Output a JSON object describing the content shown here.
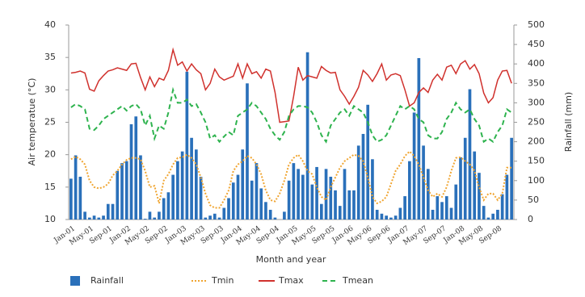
{
  "chart_data": {
    "type": "bar",
    "x_label": "Month and year",
    "y_label": "Air temperatue (°C)",
    "y2_label": "Rainfall (mm)",
    "categories": [
      "Jan-01",
      null,
      null,
      null,
      "May-01",
      null,
      null,
      null,
      "Sep-01",
      null,
      null,
      null,
      "Jan-02",
      null,
      null,
      null,
      "May-02",
      null,
      null,
      null,
      "Sep-02",
      null,
      null,
      null,
      "Jan-03",
      null,
      null,
      null,
      "May-03",
      null,
      null,
      null,
      "Sep-03",
      null,
      null,
      null,
      "Jan-04",
      null,
      null,
      null,
      "May-04",
      null,
      null,
      null,
      "Sep-04",
      null,
      null,
      null,
      "Jan-05",
      null,
      null,
      null,
      "May-05",
      null,
      null,
      null,
      "Sep-05",
      null,
      null,
      null,
      "Jan-06",
      null,
      null,
      null,
      "May-06",
      null,
      null,
      null,
      "Sep-06",
      null,
      null,
      null,
      "Jan-07",
      null,
      null,
      null,
      "May-07",
      null,
      null,
      null,
      "Sep-07",
      null,
      null,
      null,
      "Jan-08",
      null,
      null,
      null,
      "May-08",
      null,
      null,
      null,
      "Sep-08",
      null,
      null,
      null
    ],
    "ylim": [
      10,
      40
    ],
    "yticks": [
      10,
      15,
      20,
      25,
      30,
      35,
      40
    ],
    "y2lim": [
      0,
      500
    ],
    "y2ticks": [
      0,
      50,
      100,
      150,
      200,
      250,
      300,
      350,
      400,
      450,
      500
    ],
    "series": [
      {
        "name": "Rainfall",
        "type": "bar",
        "axis": "y2",
        "color": "#2a70ba",
        "values": [
          105,
          165,
          110,
          20,
          5,
          10,
          5,
          10,
          40,
          40,
          125,
          145,
          150,
          245,
          265,
          165,
          2,
          20,
          5,
          20,
          55,
          70,
          115,
          150,
          175,
          380,
          210,
          180,
          110,
          5,
          10,
          15,
          5,
          30,
          55,
          95,
          115,
          180,
          350,
          100,
          145,
          80,
          45,
          25,
          5,
          0,
          20,
          100,
          145,
          130,
          115,
          430,
          90,
          135,
          40,
          130,
          110,
          75,
          35,
          130,
          75,
          75,
          190,
          220,
          295,
          155,
          25,
          15,
          10,
          5,
          10,
          30,
          60,
          150,
          275,
          415,
          190,
          130,
          25,
          60,
          45,
          60,
          30,
          90,
          160,
          210,
          335,
          175,
          120,
          35,
          5,
          15,
          25,
          65,
          115,
          210
        ]
      },
      {
        "name": "Tmin",
        "type": "line",
        "dash": "dotted",
        "color": "#f0a531",
        "values": [
          19.3,
          19.7,
          19.3,
          18.5,
          16.0,
          15.0,
          14.8,
          15.0,
          15.5,
          16.8,
          17.5,
          18.5,
          19.2,
          19.5,
          19.5,
          19.3,
          17.5,
          15.0,
          15.2,
          12.5,
          16.0,
          17.0,
          18.5,
          19.5,
          19.6,
          20.0,
          19.5,
          18.5,
          16.5,
          14.0,
          12.2,
          11.8,
          11.8,
          13.0,
          14.5,
          17.5,
          18.5,
          19.0,
          19.8,
          19.5,
          18.5,
          17.0,
          14.5,
          13.0,
          12.8,
          14.0,
          16.0,
          18.5,
          19.5,
          20.0,
          19.0,
          17.5,
          17.0,
          15.0,
          13.5,
          13.0,
          15.0,
          16.5,
          18.0,
          19.0,
          19.5,
          20.0,
          19.8,
          19.0,
          16.5,
          13.5,
          12.5,
          12.8,
          13.5,
          15.5,
          17.5,
          18.5,
          19.8,
          20.5,
          19.8,
          18.5,
          16.5,
          14.5,
          13.5,
          14.0,
          13.5,
          15.0,
          17.5,
          19.5,
          19.6,
          19.0,
          18.5,
          17.5,
          15.0,
          13.0,
          14.0,
          14.0,
          13.0,
          14.0,
          18.0,
          18.0
        ]
      },
      {
        "name": "Tmax",
        "type": "line",
        "dash": "solid",
        "color": "#d0312d",
        "values": [
          32.6,
          32.7,
          32.9,
          32.6,
          30.1,
          29.8,
          31.4,
          32.2,
          32.9,
          33.1,
          33.4,
          33.2,
          33.0,
          34.0,
          34.1,
          31.9,
          30.0,
          32.0,
          30.5,
          31.8,
          31.5,
          33.0,
          36.2,
          33.8,
          34.3,
          32.9,
          34.0,
          33.1,
          32.5,
          30.0,
          31.0,
          33.2,
          32.0,
          31.5,
          31.8,
          32.1,
          34.0,
          31.8,
          34.0,
          32.5,
          32.8,
          31.8,
          33.2,
          32.9,
          29.6,
          25.0,
          25.1,
          25.2,
          29.0,
          33.5,
          31.5,
          32.2,
          32.0,
          31.8,
          33.6,
          33.0,
          32.6,
          32.7,
          30.0,
          29.0,
          27.8,
          29.0,
          30.4,
          33.0,
          32.3,
          31.3,
          32.5,
          34.0,
          31.5,
          32.3,
          32.5,
          32.2,
          30.0,
          27.5,
          28.0,
          29.6,
          30.3,
          29.6,
          31.5,
          32.4,
          31.5,
          33.5,
          33.8,
          32.5,
          34.0,
          34.5,
          33.2,
          33.9,
          32.5,
          29.5,
          28.0,
          28.8,
          31.5,
          32.9,
          33.0,
          31.0
        ]
      },
      {
        "name": "Tmean",
        "type": "line",
        "dash": "dashed",
        "color": "#2eb34e",
        "values": [
          27.3,
          27.8,
          27.5,
          27.0,
          24.0,
          23.8,
          24.5,
          25.5,
          26.0,
          26.5,
          27.0,
          27.5,
          26.8,
          27.5,
          27.8,
          27.0,
          24.5,
          26.0,
          22.5,
          24.5,
          24.0,
          26.5,
          30.0,
          28.0,
          28.0,
          28.5,
          27.5,
          27.8,
          26.5,
          25.0,
          22.5,
          23.0,
          22.0,
          22.8,
          23.5,
          23.0,
          26.0,
          26.5,
          27.0,
          28.0,
          27.5,
          26.5,
          25.5,
          24.0,
          23.0,
          22.3,
          23.5,
          26.0,
          27.0,
          27.5,
          27.5,
          27.3,
          26.5,
          25.0,
          23.0,
          22.0,
          24.5,
          25.5,
          26.5,
          27.0,
          26.0,
          27.5,
          27.0,
          26.5,
          25.0,
          23.0,
          22.0,
          22.3,
          23.0,
          24.5,
          26.0,
          27.5,
          27.0,
          27.5,
          27.0,
          25.5,
          25.0,
          23.0,
          22.5,
          22.5,
          23.5,
          25.5,
          26.5,
          28.0,
          27.0,
          26.5,
          27.0,
          25.5,
          24.5,
          22.0,
          22.5,
          22.0,
          23.5,
          24.5,
          27.0,
          26.5
        ]
      }
    ]
  }
}
